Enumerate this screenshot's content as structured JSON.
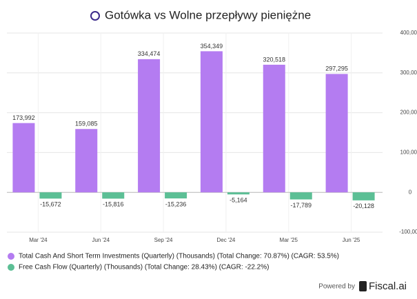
{
  "chart_data": {
    "type": "bar",
    "title": "Gotówka vs Wolne przepływy pieniężne",
    "categories": [
      "Mar '24",
      "Jun '24",
      "Sep '24",
      "Dec '24",
      "Mar '25",
      "Jun '25"
    ],
    "series": [
      {
        "name": "Total Cash And Short Term Investments (Quarterly) (Thousands) (Total Change: 70.87%) (CAGR: 53.5%)",
        "color": "#b47cf1",
        "values": [
          173992,
          159085,
          334474,
          354349,
          320518,
          297295
        ],
        "value_labels": [
          "173,992",
          "159,085",
          "334,474",
          "354,349",
          "320,518",
          "297,295"
        ]
      },
      {
        "name": "Free Cash Flow (Quarterly) (Thousands) (Total Change: 28.43%) (CAGR: -22.2%)",
        "color": "#5cbf95",
        "values": [
          -15672,
          -15816,
          -15236,
          -5164,
          -17789,
          -20128
        ],
        "value_labels": [
          "-15,672",
          "-15,816",
          "-15,236",
          "-5,164",
          "-17,789",
          "-20,128"
        ]
      }
    ],
    "ylim": [
      -100000,
      400000
    ],
    "yticks": [
      {
        "value": -100000,
        "label": "-100,000"
      },
      0,
      {
        "value": 100000,
        "label": "100,000"
      },
      {
        "value": 200000,
        "label": "200,000"
      },
      {
        "value": 300000,
        "label": "300,000"
      },
      {
        "value": 400000,
        "label": "400,000"
      }
    ],
    "grid": true,
    "footer": {
      "powered": "Powered by",
      "brand": "Fiscal.ai"
    }
  }
}
